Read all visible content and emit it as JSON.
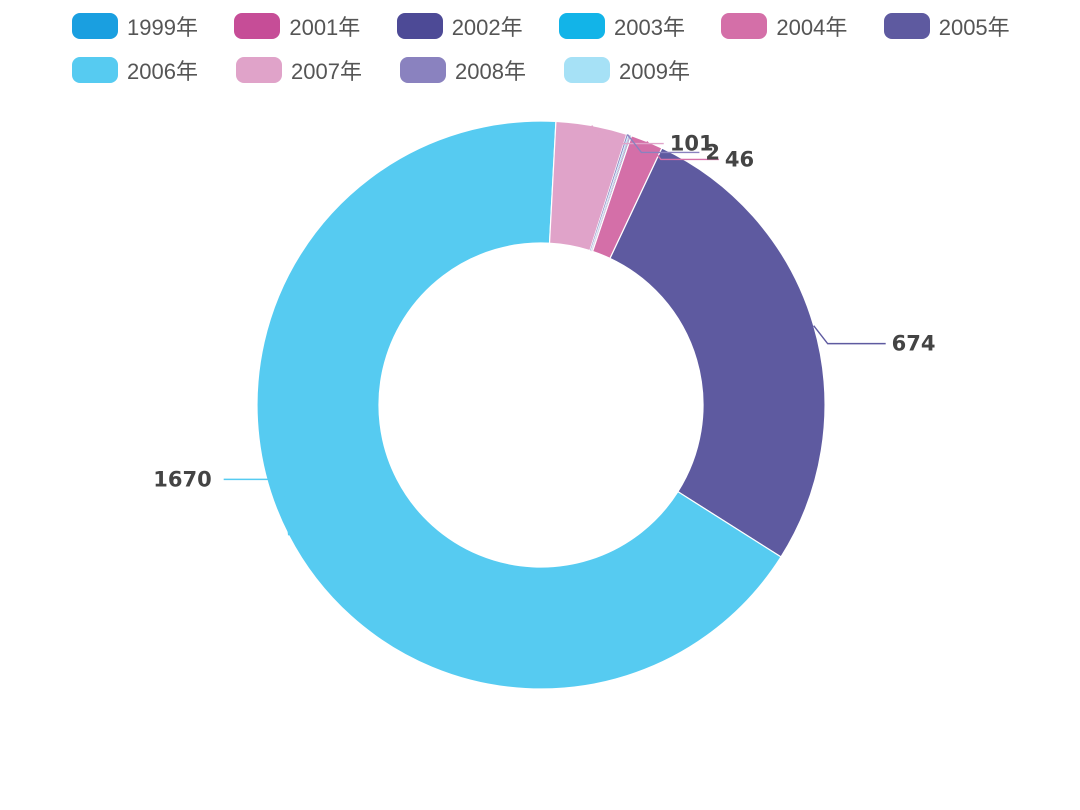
{
  "chart_data": {
    "type": "pie",
    "subtype": "donut",
    "categories": [
      "1999年",
      "2001年",
      "2002年",
      "2003年",
      "2004年",
      "2005年",
      "2006年",
      "2007年",
      "2008年",
      "2009年"
    ],
    "values": [
      1,
      1,
      1,
      1,
      46,
      674,
      1670,
      101,
      2,
      1
    ],
    "visible_labels": [
      "",
      "",
      "",
      "",
      "46",
      "674",
      "1670",
      "101",
      "2",
      ""
    ],
    "colors": [
      "#1a9fe0",
      "#c64d97",
      "#4d4a96",
      "#12b4e8",
      "#d46fa8",
      "#5e5aa0",
      "#56cbf1",
      "#e0a3c9",
      "#8a82bf",
      "#a6e1f6"
    ],
    "legend_position": "top",
    "start_angle_deg": 18,
    "direction": "clockwise"
  }
}
